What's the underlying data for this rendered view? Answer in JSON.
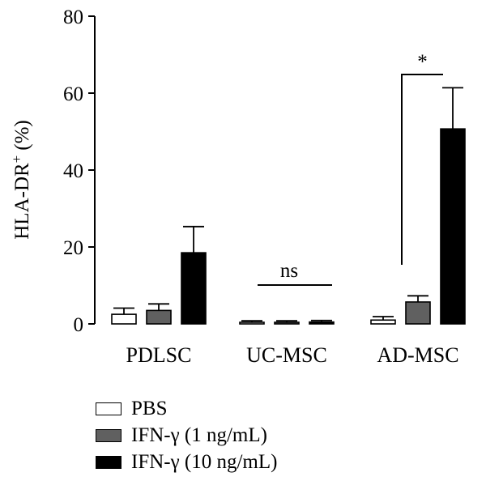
{
  "chart_data": {
    "type": "bar",
    "categories": [
      "PDLSC",
      "UC-MSC",
      "AD-MSC"
    ],
    "ylabel": "HLA-DR",
    "ylabel_superscript": "+",
    "ylabel_unit": "(%)",
    "ylim": [
      0,
      80
    ],
    "yticks": [
      "0",
      "20",
      "40",
      "60",
      "80"
    ],
    "series": [
      {
        "name": "PBS",
        "color": "#ffffff",
        "values": [
          2.5,
          0.4,
          1.0
        ],
        "errors": [
          1.6,
          0.4,
          0.9
        ]
      },
      {
        "name": "IFN-γ (1 ng/mL)",
        "color": "#606060",
        "values": [
          3.5,
          0.4,
          5.7
        ],
        "errors": [
          1.7,
          0.4,
          1.6
        ]
      },
      {
        "name": "IFN-γ (10 ng/mL)",
        "color": "#000000",
        "values": [
          18.5,
          0.5,
          50.7
        ],
        "errors": [
          6.8,
          0.4,
          10.7
        ]
      }
    ],
    "annotations": [
      {
        "text": "ns",
        "group": "UC-MSC"
      },
      {
        "text": "*",
        "group": "AD-MSC"
      }
    ],
    "legend_position": "bottom-left"
  }
}
